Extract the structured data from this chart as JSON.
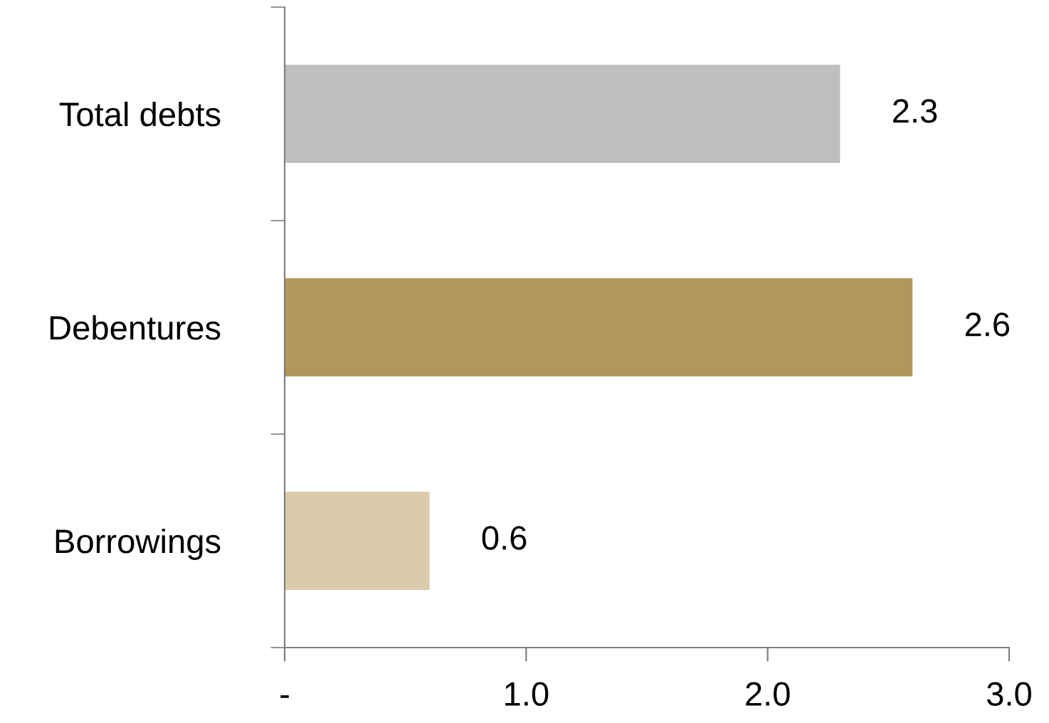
{
  "chart_data": {
    "type": "bar",
    "orientation": "horizontal",
    "categories": [
      "Total debts",
      "Debentures",
      "Borrowings"
    ],
    "values": [
      2.3,
      2.6,
      0.6
    ],
    "colors": [
      "#bfbfbf",
      "#b3965a",
      "#dccbaa"
    ],
    "xlim": [
      0,
      3
    ],
    "xticks": [
      {
        "value": 0,
        "label": "-"
      },
      {
        "value": 1,
        "label": "1.0"
      },
      {
        "value": 2,
        "label": "2.0"
      },
      {
        "value": 3,
        "label": "3.0"
      }
    ],
    "data_labels": true,
    "grid": false,
    "legend": false
  }
}
